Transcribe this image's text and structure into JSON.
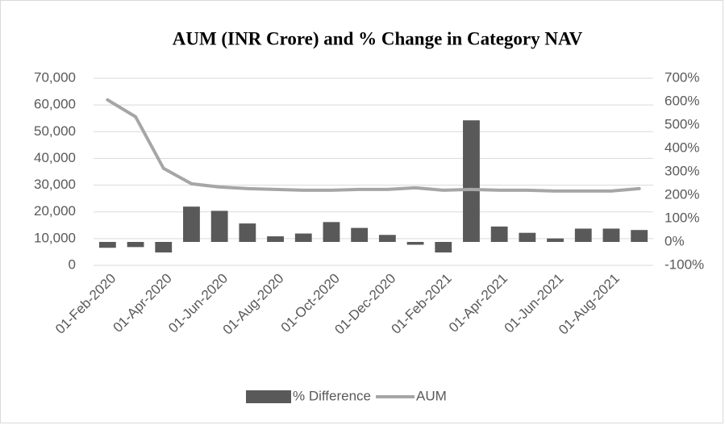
{
  "chart_data": {
    "type": "combo",
    "title": "AUM (INR Crore) and % Change in Category NAV",
    "categories": [
      "01-Feb-2020",
      null,
      "01-Apr-2020",
      null,
      "01-Jun-2020",
      null,
      "01-Aug-2020",
      null,
      "01-Oct-2020",
      null,
      "01-Dec-2020",
      null,
      "01-Feb-2021",
      null,
      "01-Apr-2021",
      null,
      "01-Jun-2021",
      null,
      "01-Aug-2021",
      null
    ],
    "series": [
      {
        "name": "% Difference",
        "type": "bar",
        "axis": "y2",
        "color": "#595959",
        "values": [
          -25,
          -22,
          -45,
          151,
          133,
          79,
          24,
          36,
          85,
          60,
          30,
          -12,
          -45,
          520,
          66,
          39,
          15,
          57,
          57,
          51
        ]
      },
      {
        "name": "AUM",
        "type": "line",
        "color": "#a6a6a6",
        "values": [
          61900,
          55600,
          36300,
          30500,
          29300,
          28700,
          28400,
          28100,
          28100,
          28400,
          28400,
          29000,
          28100,
          28400,
          28100,
          28100,
          27800,
          27800,
          27800,
          28700
        ]
      }
    ],
    "ylim": [
      0,
      70000
    ],
    "yticks": [
      0,
      {
        "value": 10000,
        "label": "10,000"
      },
      {
        "value": 20000,
        "label": "20,000"
      },
      {
        "value": 30000,
        "label": "30,000"
      },
      {
        "value": 40000,
        "label": "40,000"
      },
      {
        "value": 50000,
        "label": "50,000"
      },
      {
        "value": 60000,
        "label": "60,000"
      },
      {
        "value": 70000,
        "label": "70,000"
      }
    ],
    "y2lim": [
      -100,
      700
    ],
    "y2ticks": [
      {
        "value": -100,
        "label": "-100%"
      },
      {
        "value": 0,
        "label": "0%"
      },
      {
        "value": 100,
        "label": "100%"
      },
      {
        "value": 200,
        "label": "200%"
      },
      {
        "value": 300,
        "label": "300%"
      },
      {
        "value": 400,
        "label": "400%"
      },
      {
        "value": 500,
        "label": "500%"
      },
      {
        "value": 600,
        "label": "600%"
      },
      {
        "value": 700,
        "label": "700%"
      }
    ],
    "grid": true,
    "legend": "bottom"
  }
}
